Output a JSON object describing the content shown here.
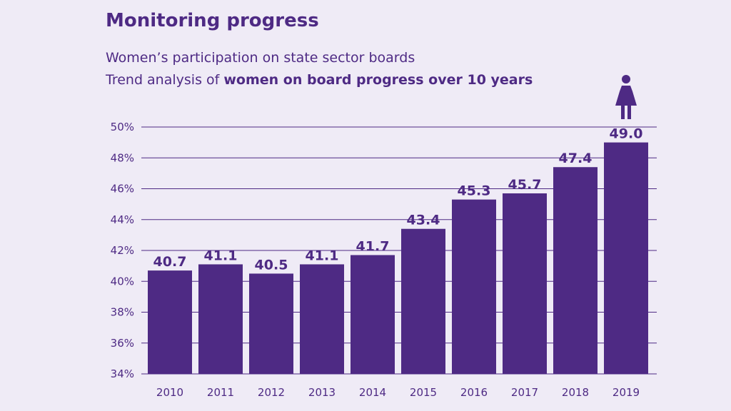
{
  "header": {
    "title": "Monitoring progress",
    "subtitle_line1": "Women’s participation on state sector boards",
    "subtitle_line2_prefix": "Trend analysis of ",
    "subtitle_line2_bold": "women on board progress over 10 years"
  },
  "colors": {
    "background": "#efebf6",
    "bar": "#4e2a84",
    "text": "#4e2a84",
    "gridline": "#4e2a84"
  },
  "icons": {
    "top_bar_icon": "woman-figure-icon"
  },
  "chart_data": {
    "type": "bar",
    "categories": [
      "2010",
      "2011",
      "2012",
      "2013",
      "2014",
      "2015",
      "2016",
      "2017",
      "2018",
      "2019"
    ],
    "values": [
      40.7,
      41.1,
      40.5,
      41.1,
      41.7,
      43.4,
      45.3,
      45.7,
      47.4,
      49.0
    ],
    "value_labels": [
      "40.7",
      "41.1",
      "40.5",
      "41.1",
      "41.7",
      "43.4",
      "45.3",
      "45.7",
      "47.4",
      "49.0"
    ],
    "yticks": [
      34,
      36,
      38,
      40,
      42,
      44,
      46,
      48,
      50
    ],
    "ytick_labels": [
      "34%",
      "36%",
      "38%",
      "40%",
      "42%",
      "44%",
      "46%",
      "48%",
      "50%"
    ],
    "ylim": [
      34,
      50
    ],
    "grid": true,
    "legend": "none"
  }
}
